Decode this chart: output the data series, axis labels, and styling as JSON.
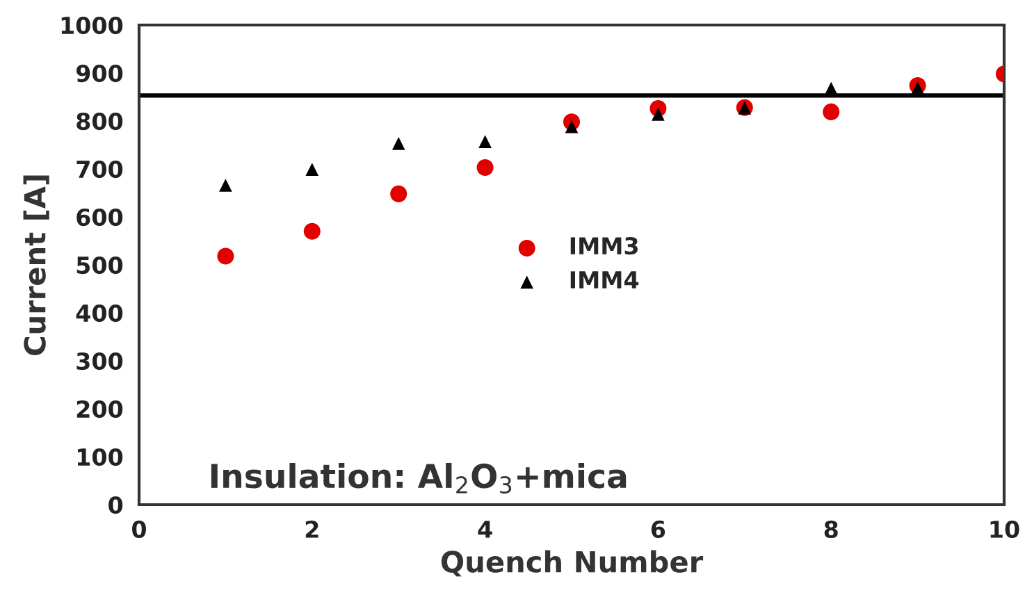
{
  "chart_data": {
    "type": "scatter",
    "xlabel": "Quench Number",
    "ylabel": "Current [A]",
    "x": [
      1,
      2,
      3,
      4,
      5,
      6,
      7,
      8,
      9,
      10
    ],
    "series": [
      {
        "name": "IMM3",
        "color": "#e00000",
        "marker": "circle",
        "values": [
          518,
          570,
          648,
          703,
          798,
          826,
          828,
          819,
          874,
          898
        ]
      },
      {
        "name": "IMM4",
        "color": "#000000",
        "marker": "triangle",
        "values": [
          666,
          699,
          753,
          757,
          788,
          814,
          827,
          868,
          869,
          null
        ]
      }
    ],
    "xlim": [
      0,
      10
    ],
    "xticks": [
      0,
      2,
      4,
      6,
      8,
      10
    ],
    "ylim": [
      0,
      1000
    ],
    "yticks": [
      0,
      100,
      200,
      300,
      400,
      500,
      600,
      700,
      800,
      900,
      1000
    ],
    "ref_lines": [
      {
        "axis": "y",
        "value": 853,
        "color": "#000000",
        "line_style": "solid"
      }
    ],
    "annotations": [
      "Insulation: Al$_{2}$O$_{3}$+mica"
    ],
    "grid": false,
    "legend": "center"
  }
}
